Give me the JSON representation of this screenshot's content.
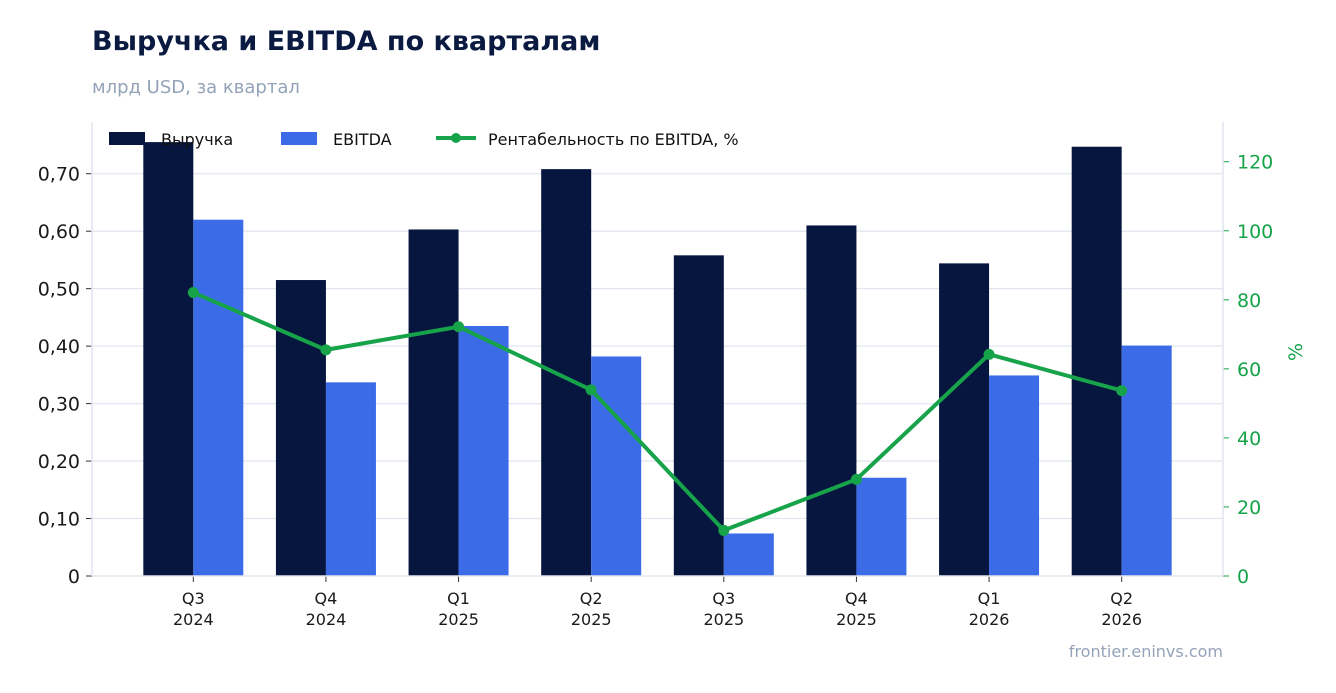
{
  "title": "Выручка и EBITDA по кварталам",
  "subtitle": "млрд USD, за квартал",
  "source": "frontier.eninvs.com",
  "chart_data": {
    "type": "bar",
    "categories": [
      {
        "q": "Q3",
        "y": "2024"
      },
      {
        "q": "Q4",
        "y": "2024"
      },
      {
        "q": "Q1",
        "y": "2025"
      },
      {
        "q": "Q2",
        "y": "2025"
      },
      {
        "q": "Q3",
        "y": "2025"
      },
      {
        "q": "Q4",
        "y": "2025"
      },
      {
        "q": "Q1",
        "y": "2026"
      },
      {
        "q": "Q2",
        "y": "2026"
      }
    ],
    "series": [
      {
        "name": "Выручка",
        "type": "bar",
        "axis": "left",
        "color": "#06163f",
        "values": [
          0.755,
          0.515,
          0.603,
          0.708,
          0.558,
          0.61,
          0.544,
          0.747
        ]
      },
      {
        "name": "EBITDA",
        "type": "bar",
        "axis": "left",
        "color": "#3b6be6",
        "values": [
          0.62,
          0.337,
          0.435,
          0.382,
          0.074,
          0.171,
          0.349,
          0.401
        ]
      },
      {
        "name": "Рентабельность по EBITDA, %",
        "type": "line",
        "axis": "right",
        "color": "#16a34a",
        "values": [
          82.1,
          65.5,
          72.2,
          53.9,
          13.2,
          28.0,
          64.2,
          53.7
        ]
      }
    ],
    "y_left": {
      "min": 0,
      "max": 0.79,
      "ticks": [
        0,
        0.1,
        0.2,
        0.3,
        0.4,
        0.5,
        0.6,
        0.7
      ],
      "tick_labels": [
        "0",
        "0,10",
        "0,20",
        "0,30",
        "0,40",
        "0,50",
        "0,60",
        "0,70"
      ]
    },
    "y_right": {
      "label": "%",
      "min": 0,
      "max": 131.5,
      "ticks": [
        0,
        20,
        40,
        60,
        80,
        100,
        120
      ],
      "tick_labels": [
        "0",
        "20",
        "40",
        "60",
        "80",
        "100",
        "120"
      ]
    },
    "grid": "horizontal",
    "legend": "top-left"
  }
}
